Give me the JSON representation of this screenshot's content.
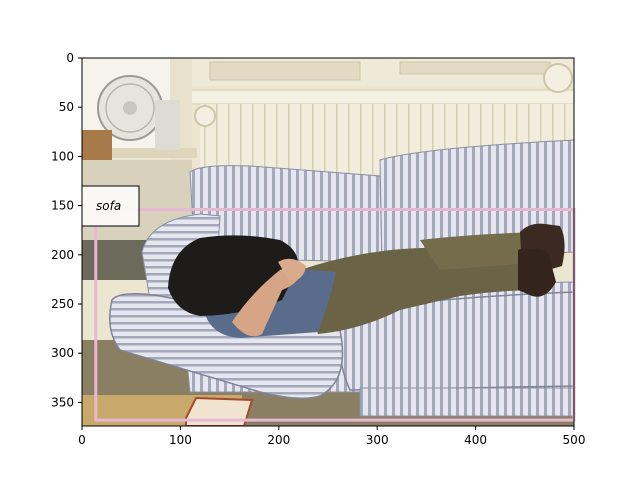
{
  "image": {
    "description_free": true,
    "x_ticks": [
      "0",
      "100",
      "200",
      "300",
      "400",
      "500"
    ],
    "y_ticks": [
      "0",
      "50",
      "100",
      "150",
      "200",
      "250",
      "300",
      "350"
    ],
    "x_range": [
      0,
      500
    ],
    "y_range": [
      0,
      374
    ]
  },
  "annotation": {
    "label": "sofa",
    "box": {
      "x0": 14,
      "y0": 154,
      "x1": 500,
      "y1": 368
    },
    "box_color": "#e6b8d2"
  },
  "colors": {
    "wall": "#efe9d6",
    "wall_shadow": "#d8d0b4",
    "sofa": "#e4e4ea",
    "sofa_stripe": "#9a9fb4",
    "floor": "#8a8064",
    "shirt": "#1f1e1c",
    "pants": "#6c6446",
    "jeans_blue": "#5d6f8c",
    "skin": "#d9a98a",
    "shoe": "#3a2a22"
  }
}
